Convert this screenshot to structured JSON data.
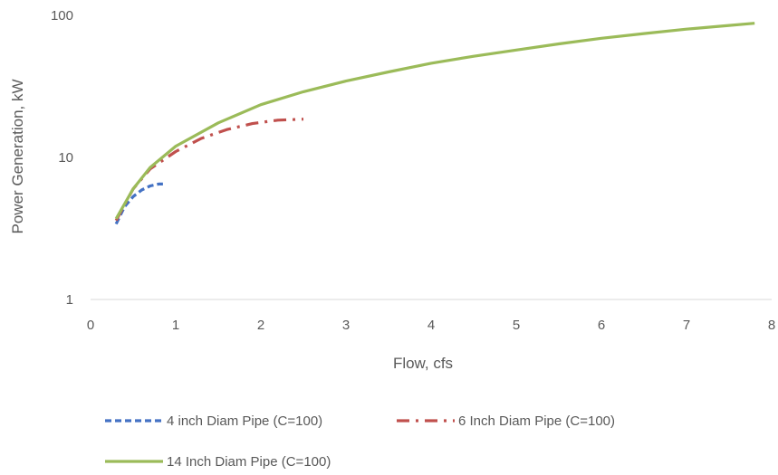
{
  "chart_data": {
    "type": "line",
    "title": "",
    "xlabel": "Flow, cfs",
    "ylabel": "Power Generation, kW",
    "x_scale": "linear",
    "y_scale": "log",
    "xlim": [
      0,
      8
    ],
    "ylim": [
      1,
      100
    ],
    "x_ticks": [
      "0",
      "1",
      "2",
      "3",
      "4",
      "5",
      "6",
      "7",
      "8"
    ],
    "y_ticks": [
      "1",
      "10",
      "100"
    ],
    "grid": false,
    "legend_position": "bottom",
    "series": [
      {
        "name": "4 inch Diam Pipe (C=100)",
        "color": "#4472C4",
        "style": "dashed",
        "x": [
          0.3,
          0.4,
          0.5,
          0.6,
          0.7,
          0.8,
          0.85
        ],
        "y": [
          3.4,
          4.5,
          5.3,
          5.9,
          6.3,
          6.5,
          6.5
        ]
      },
      {
        "name": "6 Inch Diam Pipe (C=100)",
        "color": "#C0504D",
        "style": "dash-dot",
        "x": [
          0.3,
          0.5,
          0.7,
          1.0,
          1.3,
          1.6,
          1.9,
          2.2,
          2.5
        ],
        "y": [
          3.6,
          6.0,
          8.3,
          11.0,
          13.6,
          15.7,
          17.3,
          18.3,
          18.6
        ]
      },
      {
        "name": "14 Inch Diam Pipe (C=100)",
        "color": "#9BBB59",
        "style": "solid",
        "x": [
          0.3,
          0.5,
          0.7,
          1.0,
          1.5,
          2.0,
          2.5,
          3.0,
          3.5,
          4.0,
          4.5,
          5.0,
          5.5,
          6.0,
          6.5,
          7.0,
          7.5,
          7.8
        ],
        "y": [
          3.7,
          6.0,
          8.5,
          12.0,
          17.5,
          23.5,
          29.0,
          34.5,
          40.0,
          46.0,
          51.5,
          57.0,
          63.0,
          69.0,
          74.5,
          80.0,
          85.0,
          88.0
        ]
      }
    ]
  }
}
